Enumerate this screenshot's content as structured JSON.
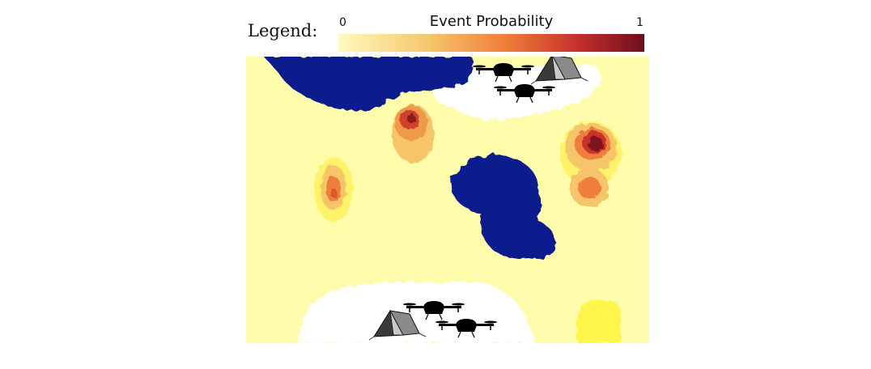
{
  "legend": {
    "label": "Legend:",
    "title": "Event Probability",
    "min": "0",
    "max": "1",
    "colors": [
      "#fffac0",
      "#f6c56a",
      "#ef7d3a",
      "#c8302b",
      "#6b0f1c"
    ]
  },
  "map": {
    "background_color": "#fffdab",
    "obstacle_color": "#0a1a8c",
    "safe_zone_color": "#ffffff",
    "icons": [
      "drone-icon",
      "tent-icon"
    ]
  }
}
